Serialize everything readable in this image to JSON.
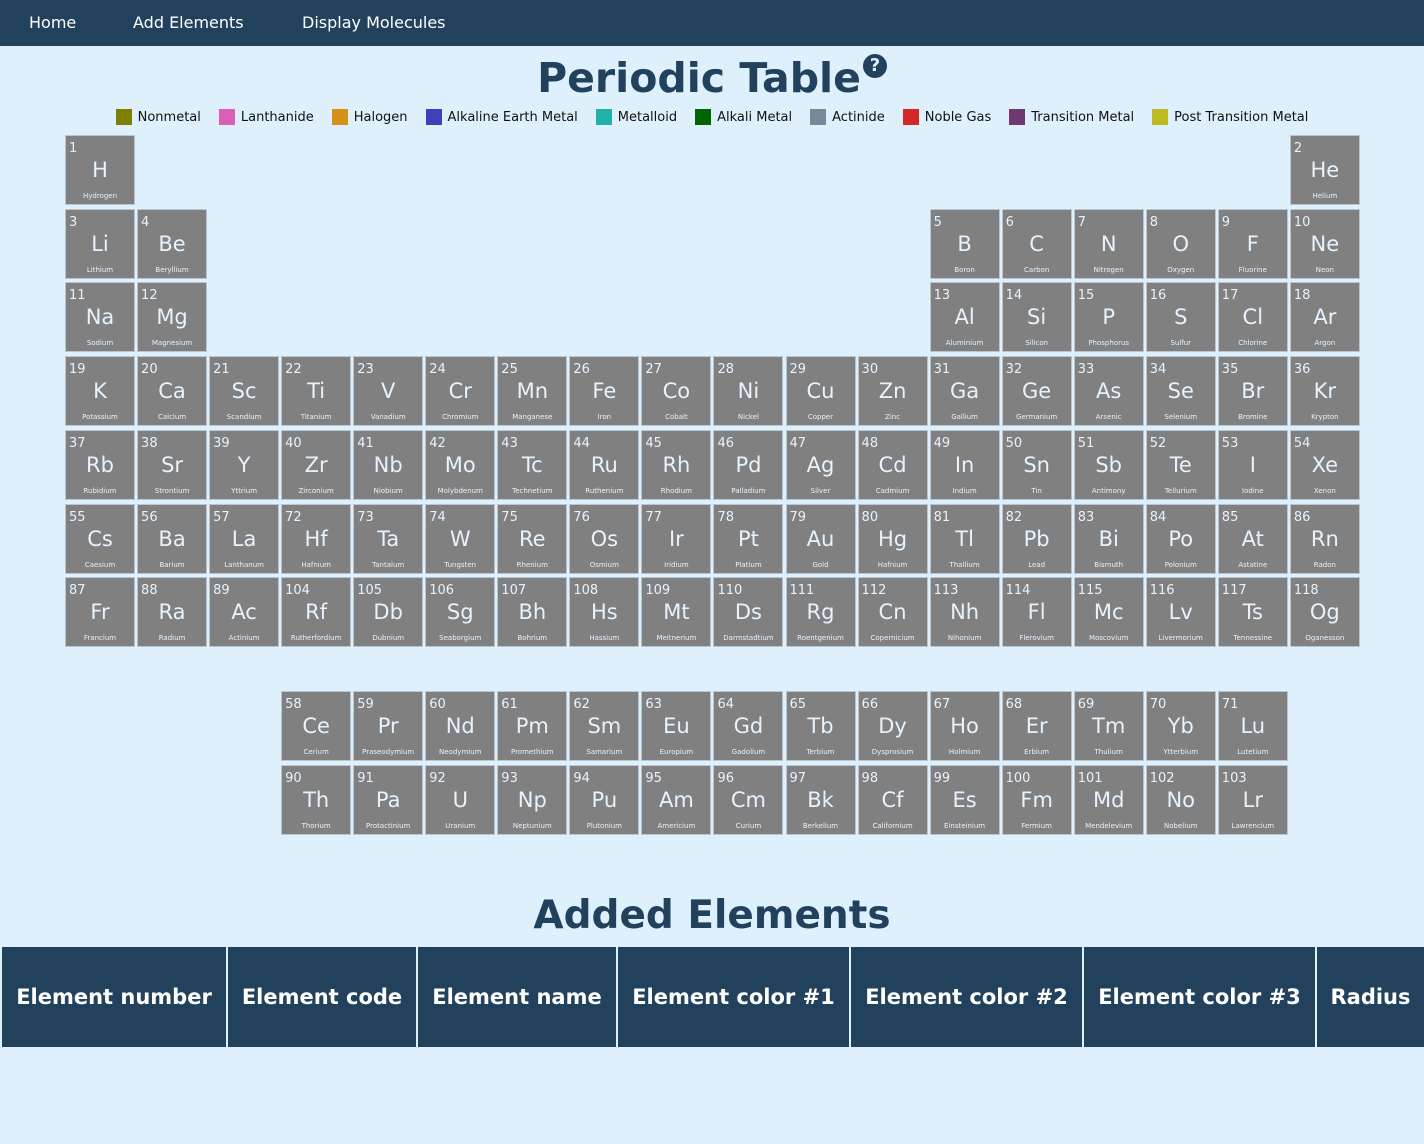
{
  "nav": {
    "home": "Home",
    "add_elements": "Add Elements",
    "display_molecules": "Display Molecules"
  },
  "title": "Periodic Table",
  "help_icon": "?",
  "legend": [
    {
      "label": "Nonmetal",
      "color": "#808000"
    },
    {
      "label": "Lanthanide",
      "color": "#d95fb7"
    },
    {
      "label": "Halogen",
      "color": "#d7901a"
    },
    {
      "label": "Alkaline Earth Metal",
      "color": "#3f3fb9"
    },
    {
      "label": "Metalloid",
      "color": "#20b2aa"
    },
    {
      "label": "Alkali Metal",
      "color": "#006400"
    },
    {
      "label": "Actinide",
      "color": "#778899"
    },
    {
      "label": "Noble Gas",
      "color": "#d62728"
    },
    {
      "label": "Transition Metal",
      "color": "#6f3774"
    },
    {
      "label": "Post Transition Metal",
      "color": "#bdbd22"
    }
  ],
  "elements": [
    {
      "n": "1",
      "s": "H",
      "name": "Hydrogen"
    },
    {
      "n": "2",
      "s": "He",
      "name": "Helium"
    },
    {
      "n": "3",
      "s": "Li",
      "name": "Lithium"
    },
    {
      "n": "4",
      "s": "Be",
      "name": "Beryllium"
    },
    {
      "n": "5",
      "s": "B",
      "name": "Boron"
    },
    {
      "n": "6",
      "s": "C",
      "name": "Carbon"
    },
    {
      "n": "7",
      "s": "N",
      "name": "Nitrogen"
    },
    {
      "n": "8",
      "s": "O",
      "name": "Oxygen"
    },
    {
      "n": "9",
      "s": "F",
      "name": "Fluorine"
    },
    {
      "n": "10",
      "s": "Ne",
      "name": "Neon"
    },
    {
      "n": "11",
      "s": "Na",
      "name": "Sodium"
    },
    {
      "n": "12",
      "s": "Mg",
      "name": "Magnesium"
    },
    {
      "n": "13",
      "s": "Al",
      "name": "Aluminium"
    },
    {
      "n": "14",
      "s": "Si",
      "name": "Silicon"
    },
    {
      "n": "15",
      "s": "P",
      "name": "Phosphorus"
    },
    {
      "n": "16",
      "s": "S",
      "name": "Sulfur"
    },
    {
      "n": "17",
      "s": "Cl",
      "name": "Chlorine"
    },
    {
      "n": "18",
      "s": "Ar",
      "name": "Argon"
    },
    {
      "n": "19",
      "s": "K",
      "name": "Potassium"
    },
    {
      "n": "20",
      "s": "Ca",
      "name": "Calcium"
    },
    {
      "n": "21",
      "s": "Sc",
      "name": "Scandium"
    },
    {
      "n": "22",
      "s": "Ti",
      "name": "Titanium"
    },
    {
      "n": "23",
      "s": "V",
      "name": "Vanadium"
    },
    {
      "n": "24",
      "s": "Cr",
      "name": "Chromium"
    },
    {
      "n": "25",
      "s": "Mn",
      "name": "Manganese"
    },
    {
      "n": "26",
      "s": "Fe",
      "name": "Iron"
    },
    {
      "n": "27",
      "s": "Co",
      "name": "Cobalt"
    },
    {
      "n": "28",
      "s": "Ni",
      "name": "Nickel"
    },
    {
      "n": "29",
      "s": "Cu",
      "name": "Copper"
    },
    {
      "n": "30",
      "s": "Zn",
      "name": "Zinc"
    },
    {
      "n": "31",
      "s": "Ga",
      "name": "Gallium"
    },
    {
      "n": "32",
      "s": "Ge",
      "name": "Germanium"
    },
    {
      "n": "33",
      "s": "As",
      "name": "Arsenic"
    },
    {
      "n": "34",
      "s": "Se",
      "name": "Selenium"
    },
    {
      "n": "35",
      "s": "Br",
      "name": "Bromine"
    },
    {
      "n": "36",
      "s": "Kr",
      "name": "Krypton"
    },
    {
      "n": "37",
      "s": "Rb",
      "name": "Rubidium"
    },
    {
      "n": "38",
      "s": "Sr",
      "name": "Strontium"
    },
    {
      "n": "39",
      "s": "Y",
      "name": "Yttrium"
    },
    {
      "n": "40",
      "s": "Zr",
      "name": "Zirconium"
    },
    {
      "n": "41",
      "s": "Nb",
      "name": "Niobium"
    },
    {
      "n": "42",
      "s": "Mo",
      "name": "Molybdenum"
    },
    {
      "n": "43",
      "s": "Tc",
      "name": "Technetium"
    },
    {
      "n": "44",
      "s": "Ru",
      "name": "Ruthenium"
    },
    {
      "n": "45",
      "s": "Rh",
      "name": "Rhodium"
    },
    {
      "n": "46",
      "s": "Pd",
      "name": "Palladium"
    },
    {
      "n": "47",
      "s": "Ag",
      "name": "Silver"
    },
    {
      "n": "48",
      "s": "Cd",
      "name": "Cadmium"
    },
    {
      "n": "49",
      "s": "In",
      "name": "Indium"
    },
    {
      "n": "50",
      "s": "Sn",
      "name": "Tin"
    },
    {
      "n": "51",
      "s": "Sb",
      "name": "Antimony"
    },
    {
      "n": "52",
      "s": "Te",
      "name": "Tellurium"
    },
    {
      "n": "53",
      "s": "I",
      "name": "Iodine"
    },
    {
      "n": "54",
      "s": "Xe",
      "name": "Xenon"
    },
    {
      "n": "55",
      "s": "Cs",
      "name": "Caesium"
    },
    {
      "n": "56",
      "s": "Ba",
      "name": "Barium"
    },
    {
      "n": "57",
      "s": "La",
      "name": "Lanthanum"
    },
    {
      "n": "72",
      "s": "Hf",
      "name": "Hafnium"
    },
    {
      "n": "73",
      "s": "Ta",
      "name": "Tantalum"
    },
    {
      "n": "74",
      "s": "W",
      "name": "Tungsten"
    },
    {
      "n": "75",
      "s": "Re",
      "name": "Rhenium"
    },
    {
      "n": "76",
      "s": "Os",
      "name": "Osmium"
    },
    {
      "n": "77",
      "s": "Ir",
      "name": "Iridium"
    },
    {
      "n": "78",
      "s": "Pt",
      "name": "Platium"
    },
    {
      "n": "79",
      "s": "Au",
      "name": "Gold"
    },
    {
      "n": "80",
      "s": "Hg",
      "name": "Hafnium"
    },
    {
      "n": "81",
      "s": "Tl",
      "name": "Thallium"
    },
    {
      "n": "82",
      "s": "Pb",
      "name": "Lead"
    },
    {
      "n": "83",
      "s": "Bi",
      "name": "Bismuth"
    },
    {
      "n": "84",
      "s": "Po",
      "name": "Polonium"
    },
    {
      "n": "85",
      "s": "At",
      "name": "Astatine"
    },
    {
      "n": "86",
      "s": "Rn",
      "name": "Radon"
    },
    {
      "n": "87",
      "s": "Fr",
      "name": "Francium"
    },
    {
      "n": "88",
      "s": "Ra",
      "name": "Radium"
    },
    {
      "n": "89",
      "s": "Ac",
      "name": "Actinium"
    },
    {
      "n": "104",
      "s": "Rf",
      "name": "Rutherfordium"
    },
    {
      "n": "105",
      "s": "Db",
      "name": "Dubnium"
    },
    {
      "n": "106",
      "s": "Sg",
      "name": "Seaborgium"
    },
    {
      "n": "107",
      "s": "Bh",
      "name": "Bohrium"
    },
    {
      "n": "108",
      "s": "Hs",
      "name": "Hassium"
    },
    {
      "n": "109",
      "s": "Mt",
      "name": "Meitnerium"
    },
    {
      "n": "110",
      "s": "Ds",
      "name": "Darmstadtium"
    },
    {
      "n": "111",
      "s": "Rg",
      "name": "Roentgenium"
    },
    {
      "n": "112",
      "s": "Cn",
      "name": "Copernicium"
    },
    {
      "n": "113",
      "s": "Nh",
      "name": "Nihonium"
    },
    {
      "n": "114",
      "s": "Fl",
      "name": "Flerovium"
    },
    {
      "n": "115",
      "s": "Mc",
      "name": "Moscovium"
    },
    {
      "n": "116",
      "s": "Lv",
      "name": "Livermorium"
    },
    {
      "n": "117",
      "s": "Ts",
      "name": "Tennessine"
    },
    {
      "n": "118",
      "s": "Og",
      "name": "Oganesson"
    },
    {
      "n": "58",
      "s": "Ce",
      "name": "Cerium"
    },
    {
      "n": "59",
      "s": "Pr",
      "name": "Praseodymium"
    },
    {
      "n": "60",
      "s": "Nd",
      "name": "Neodymium"
    },
    {
      "n": "61",
      "s": "Pm",
      "name": "Promethium"
    },
    {
      "n": "62",
      "s": "Sm",
      "name": "Samarium"
    },
    {
      "n": "63",
      "s": "Eu",
      "name": "Europium"
    },
    {
      "n": "64",
      "s": "Gd",
      "name": "Gadolium"
    },
    {
      "n": "65",
      "s": "Tb",
      "name": "Terbium"
    },
    {
      "n": "66",
      "s": "Dy",
      "name": "Dysprosium"
    },
    {
      "n": "67",
      "s": "Ho",
      "name": "Holmium"
    },
    {
      "n": "68",
      "s": "Er",
      "name": "Erbium"
    },
    {
      "n": "69",
      "s": "Tm",
      "name": "Thulium"
    },
    {
      "n": "70",
      "s": "Yb",
      "name": "Ytterbium"
    },
    {
      "n": "71",
      "s": "Lu",
      "name": "Lutetium"
    },
    {
      "n": "90",
      "s": "Th",
      "name": "Thorium"
    },
    {
      "n": "91",
      "s": "Pa",
      "name": "Protactinium"
    },
    {
      "n": "92",
      "s": "U",
      "name": "Uranium"
    },
    {
      "n": "93",
      "s": "Np",
      "name": "Neptunium"
    },
    {
      "n": "94",
      "s": "Pu",
      "name": "Plutonium"
    },
    {
      "n": "95",
      "s": "Am",
      "name": "Americium"
    },
    {
      "n": "96",
      "s": "Cm",
      "name": "Curium"
    },
    {
      "n": "97",
      "s": "Bk",
      "name": "Berkelium"
    },
    {
      "n": "98",
      "s": "Cf",
      "name": "Californium"
    },
    {
      "n": "99",
      "s": "Es",
      "name": "Einsteinium"
    },
    {
      "n": "100",
      "s": "Fm",
      "name": "Fermium"
    },
    {
      "n": "101",
      "s": "Md",
      "name": "Mendelevium"
    },
    {
      "n": "102",
      "s": "No",
      "name": "Nobelium"
    },
    {
      "n": "103",
      "s": "Lr",
      "name": "Lawrencium"
    }
  ],
  "added_elements": {
    "title": "Added Elements",
    "columns": [
      "Element number",
      "Element code",
      "Element name",
      "Element color #1",
      "Element color #2",
      "Element color #3",
      "Radius"
    ]
  }
}
